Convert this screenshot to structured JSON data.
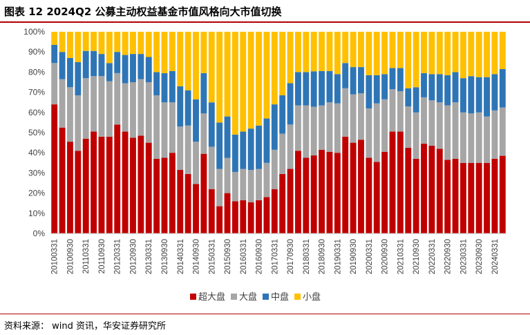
{
  "header": {
    "title": "图表 12 2024Q2 公募主动权益基金市值风格向大市值切换"
  },
  "footer": {
    "source": "资料来源： wind 资讯，华安证券研究所"
  },
  "chart_data": {
    "type": "bar",
    "stacked": true,
    "percent": true,
    "ylim": [
      0,
      100
    ],
    "yticks": [
      "0%",
      "10%",
      "20%",
      "30%",
      "40%",
      "50%",
      "60%",
      "70%",
      "80%",
      "90%",
      "100%"
    ],
    "grid": false,
    "legend_position": "bottom",
    "categories": [
      "20100331",
      "20100630",
      "20100930",
      "20101231",
      "20110331",
      "20110630",
      "20110930",
      "20111231",
      "20120331",
      "20120630",
      "20120930",
      "20121231",
      "20130331",
      "20130630",
      "20130930",
      "20131231",
      "20140331",
      "20140630",
      "20140930",
      "20141231",
      "20150331",
      "20150630",
      "20150930",
      "20151231",
      "20160331",
      "20160630",
      "20160930",
      "20161231",
      "20170331",
      "20170630",
      "20170930",
      "20171231",
      "20180331",
      "20180630",
      "20180930",
      "20181231",
      "20190331",
      "20190630",
      "20190930",
      "20191231",
      "20200331",
      "20200630",
      "20200930",
      "20201231",
      "20210331",
      "20210630",
      "20210930",
      "20211231",
      "20220331",
      "20220630",
      "20220930",
      "20221231",
      "20230331",
      "20230630",
      "20230930",
      "20231231",
      "20240331",
      "20240630"
    ],
    "visible_tick_labels": [
      "20100331",
      "20100930",
      "20110331",
      "20110930",
      "20120331",
      "20120930",
      "20130331",
      "20130930",
      "20140331",
      "20140930",
      "20150331",
      "20150930",
      "20160331",
      "20160930",
      "20170331",
      "20170930",
      "20180331",
      "20180930",
      "20190331",
      "20190930",
      "20200331",
      "20200930",
      "20210331",
      "20210930",
      "20220331",
      "20220930",
      "20230331",
      "20230930",
      "20240331"
    ],
    "series": [
      {
        "name": "超大盘",
        "color": "#c00000",
        "values": [
          64,
          52.5,
          45.5,
          41,
          47,
          50.5,
          48,
          48,
          54,
          50.5,
          47.5,
          48.5,
          45,
          37,
          37.5,
          40,
          31.5,
          29.5,
          24.5,
          39.5,
          22,
          13.5,
          20,
          16,
          16.5,
          15.5,
          16.5,
          18,
          22,
          29.5,
          32,
          41,
          37.5,
          38.5,
          41.5,
          40.5,
          40,
          48,
          45,
          46.5,
          37.5,
          35.5,
          40.5,
          50.5,
          50.5,
          42.5,
          37,
          44.5,
          43.5,
          42,
          36.5,
          37,
          35,
          35,
          35,
          35,
          37,
          38.5
        ]
      },
      {
        "name": "大盘",
        "color": "#a6a6a6",
        "values": [
          20.5,
          24,
          27,
          27.5,
          30,
          27.5,
          30,
          27.5,
          25.5,
          24,
          27.5,
          28,
          30,
          31.5,
          27.5,
          25,
          21.5,
          24,
          21,
          20,
          21,
          18.5,
          17.5,
          14.5,
          15.5,
          16,
          15.5,
          17,
          19.5,
          20,
          22,
          22.5,
          26,
          24,
          22,
          24.5,
          24.5,
          24,
          24,
          23,
          24.5,
          29,
          26,
          21,
          20,
          20.5,
          23,
          23,
          22.5,
          23,
          27,
          28,
          25,
          24.5,
          25,
          23,
          24,
          24
        ]
      },
      {
        "name": "中盘",
        "color": "#2e75b6",
        "values": [
          9,
          13.5,
          14.5,
          16.5,
          13.5,
          12.5,
          11,
          9,
          10.5,
          14,
          14,
          12.5,
          12.5,
          11.5,
          14.5,
          15.5,
          20,
          17.5,
          21,
          20,
          22,
          23,
          20.5,
          18.5,
          18.5,
          20.5,
          21.5,
          22,
          22.5,
          19,
          20.5,
          16.5,
          16.5,
          17.5,
          17,
          15.5,
          14.5,
          12.5,
          13.5,
          13,
          16.5,
          14,
          12.5,
          10.5,
          11.5,
          9,
          12.5,
          12,
          13,
          14,
          15,
          15,
          17,
          18.5,
          17.5,
          19.5,
          18,
          19
        ]
      },
      {
        "name": "小盘",
        "color": "#ffc000",
        "values": [
          6.5,
          10,
          13,
          15,
          9.5,
          9.5,
          11,
          15.5,
          10,
          11.5,
          11,
          11,
          12.5,
          20,
          20.5,
          19.5,
          27,
          29,
          33.5,
          20.5,
          35,
          45,
          42,
          51,
          49.5,
          48,
          46.5,
          43,
          36,
          31.5,
          25.5,
          20,
          20,
          19.5,
          19.5,
          19.5,
          21,
          15.5,
          17.5,
          17.5,
          21.5,
          21.5,
          21,
          18,
          18,
          28,
          27.5,
          20.5,
          21,
          21,
          21.5,
          20,
          23,
          22,
          22.5,
          22.5,
          21,
          18.5
        ]
      }
    ]
  }
}
